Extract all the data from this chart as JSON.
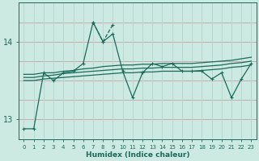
{
  "xlabel": "Humidex (Indice chaleur)",
  "bg_color": "#cce9e2",
  "line_color": "#1a6b5a",
  "red_line_color": "#c8a0a0",
  "white_grid_color": "#b8d8d0",
  "xlim": [
    -0.5,
    23.5
  ],
  "ylim": [
    12.75,
    14.5
  ],
  "yticks": [
    13,
    14
  ],
  "xticks": [
    0,
    1,
    2,
    3,
    4,
    5,
    6,
    7,
    8,
    9,
    10,
    11,
    12,
    13,
    14,
    15,
    16,
    17,
    18,
    19,
    20,
    21,
    22,
    23
  ],
  "hgrid_values": [
    12.75,
    13.0,
    13.25,
    13.5,
    13.75,
    14.0,
    14.25,
    14.5
  ],
  "jagged": [
    12.88,
    12.88,
    13.6,
    13.5,
    13.6,
    13.62,
    13.72,
    14.25,
    14.0,
    14.1,
    13.62,
    13.28,
    13.6,
    13.72,
    13.68,
    13.72,
    13.62,
    13.62,
    13.62,
    13.52,
    13.6,
    13.28,
    13.52,
    13.72
  ],
  "dashed": [
    12.88,
    13.6,
    null,
    null,
    null,
    null,
    null,
    14.25,
    14.0,
    14.22,
    14.1,
    13.62,
    13.28,
    13.6,
    13.72,
    13.68,
    13.72,
    13.62,
    13.62,
    13.62,
    13.52,
    13.6,
    13.28,
    13.52
  ],
  "trend1": [
    13.58,
    13.58,
    13.6,
    13.6,
    13.62,
    13.63,
    13.65,
    13.66,
    13.68,
    13.69,
    13.7,
    13.7,
    13.71,
    13.71,
    13.72,
    13.72,
    13.72,
    13.72,
    13.73,
    13.74,
    13.75,
    13.76,
    13.78,
    13.8
  ],
  "trend2": [
    13.54,
    13.54,
    13.56,
    13.57,
    13.59,
    13.6,
    13.61,
    13.62,
    13.63,
    13.64,
    13.65,
    13.65,
    13.66,
    13.66,
    13.67,
    13.67,
    13.67,
    13.67,
    13.68,
    13.69,
    13.7,
    13.72,
    13.73,
    13.75
  ],
  "trend3": [
    13.5,
    13.5,
    13.52,
    13.53,
    13.54,
    13.55,
    13.56,
    13.57,
    13.58,
    13.59,
    13.6,
    13.6,
    13.61,
    13.61,
    13.62,
    13.62,
    13.62,
    13.62,
    13.63,
    13.64,
    13.65,
    13.67,
    13.68,
    13.7
  ],
  "marker_size": 3.5,
  "line_width": 0.9
}
